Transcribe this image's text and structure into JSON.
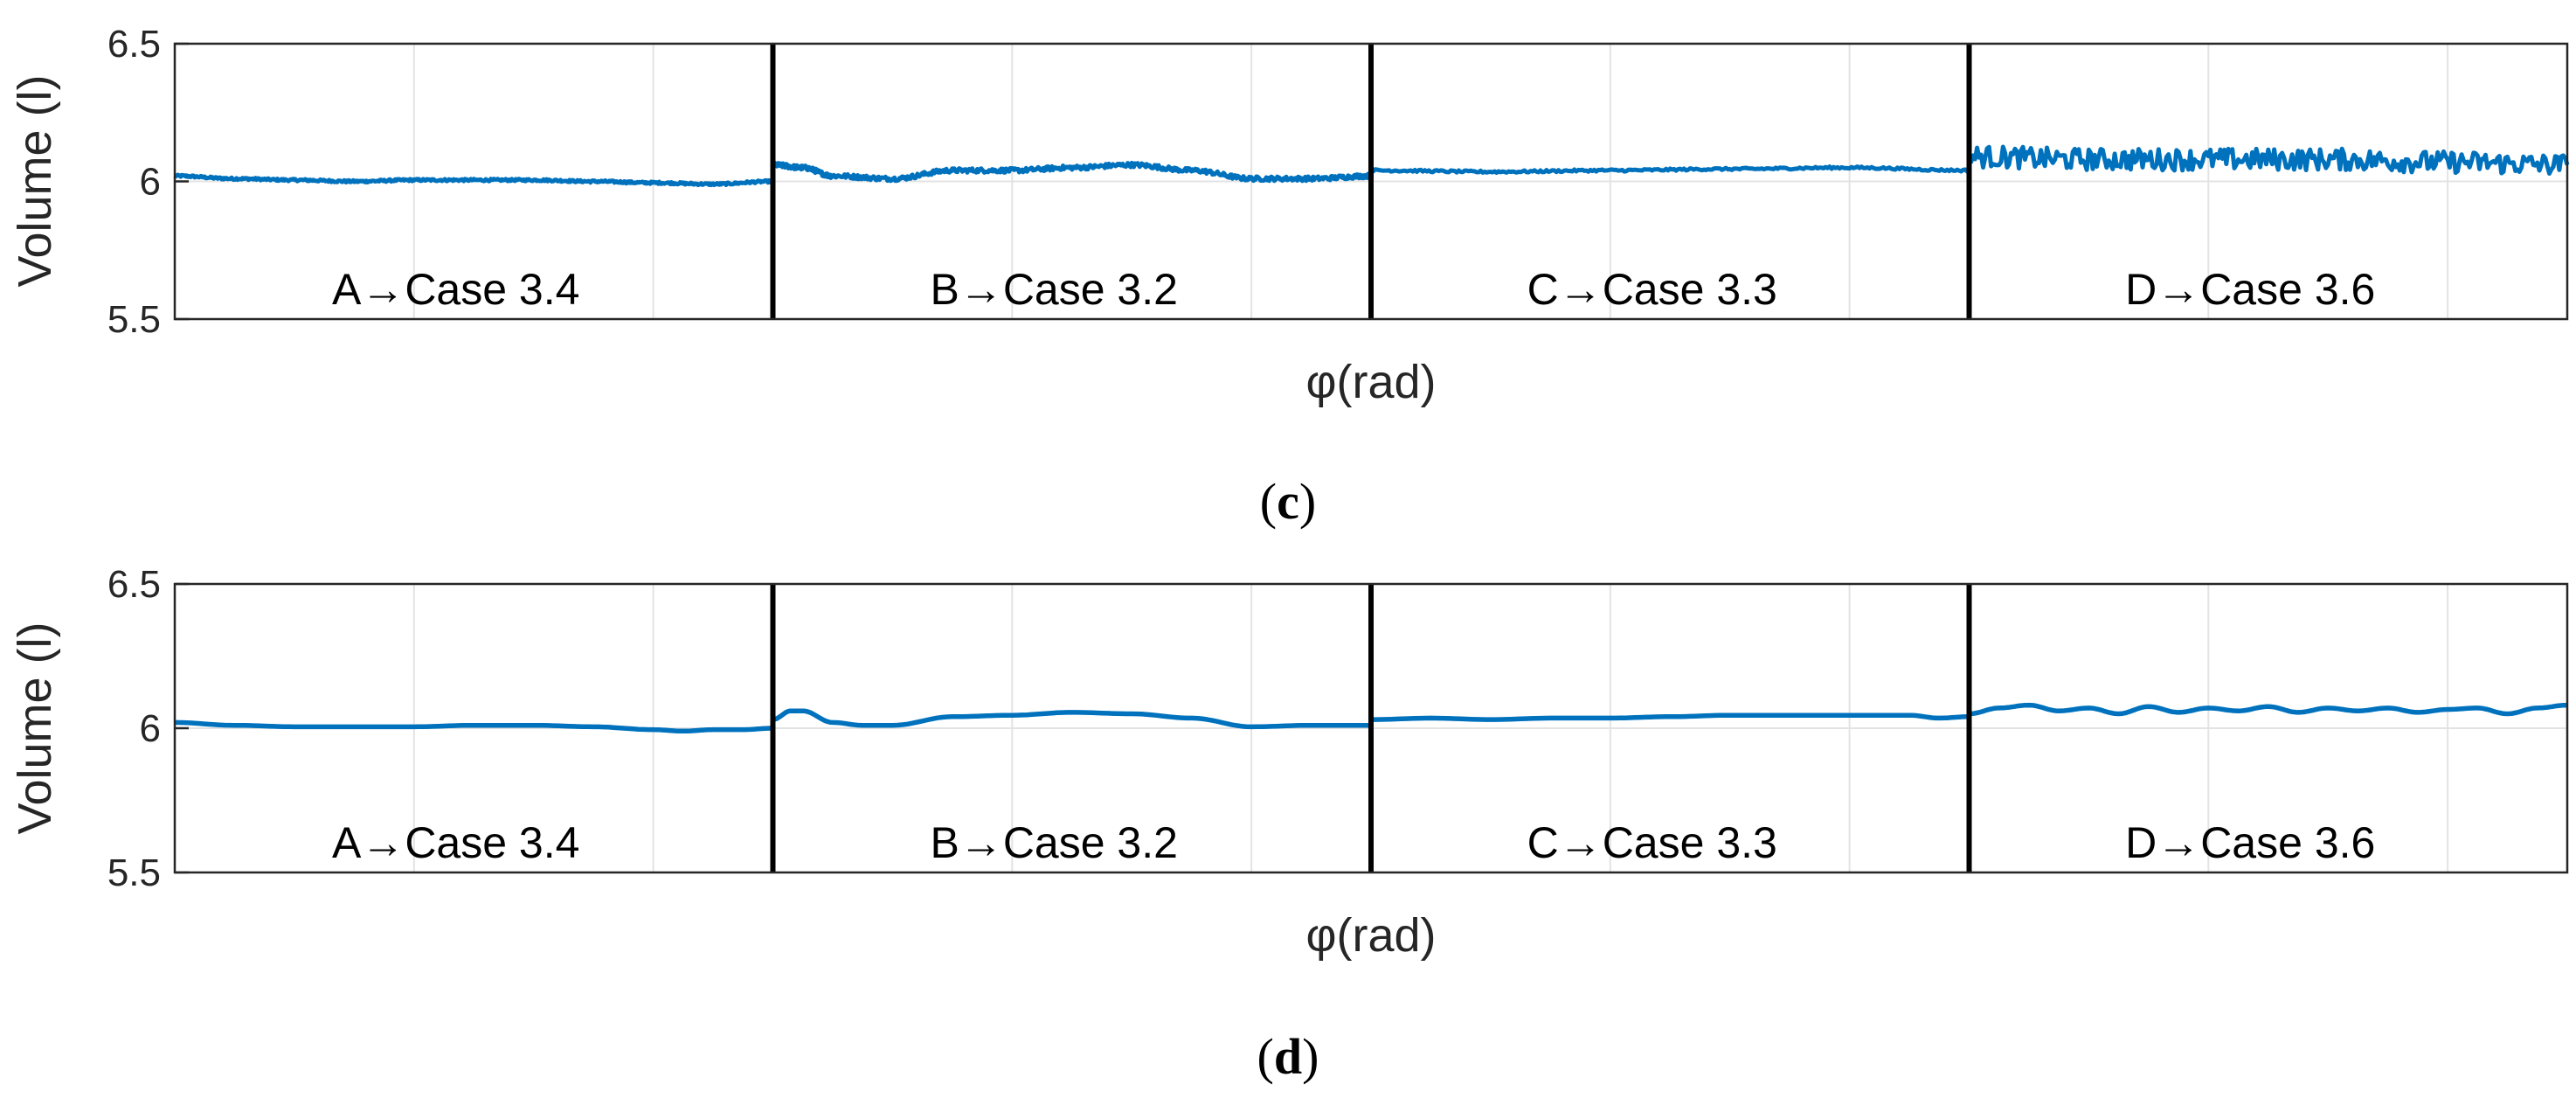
{
  "chart_data": [
    {
      "type": "line",
      "panel_label_open": "(",
      "panel_label_letter": "c",
      "panel_label_close": ")",
      "xlabel": "φ(rad)",
      "ylabel": "Volume (l)",
      "ylim": [
        5.5,
        6.5
      ],
      "xlim": [
        0,
        4
      ],
      "y_ticks": [
        "5.5",
        "6",
        "6.5"
      ],
      "grid": true,
      "line_color": "#0072BD",
      "segments": [
        {
          "label": "A→Case 3.4",
          "noise": 0.004,
          "x": [
            0,
            0.1,
            0.2,
            0.3,
            0.4,
            0.5,
            0.6,
            0.7,
            0.8,
            0.9,
            1.0
          ],
          "y": [
            6.02,
            6.01,
            6.005,
            6.0,
            6.005,
            6.005,
            6.005,
            6.0,
            5.995,
            5.99,
            6.0
          ]
        },
        {
          "label": "B→Case 3.2",
          "noise": 0.008,
          "x": [
            1.0,
            1.05,
            1.1,
            1.2,
            1.3,
            1.4,
            1.5,
            1.6,
            1.7,
            1.8,
            1.9,
            2.0
          ],
          "y": [
            6.06,
            6.05,
            6.02,
            6.01,
            6.04,
            6.04,
            6.05,
            6.06,
            6.04,
            6.01,
            6.01,
            6.02
          ]
        },
        {
          "label": "C→Case 3.3",
          "noise": 0.004,
          "x": [
            2.0,
            2.2,
            2.4,
            2.6,
            2.8,
            3.0
          ],
          "y": [
            6.04,
            6.035,
            6.04,
            6.045,
            6.05,
            6.04
          ]
        },
        {
          "label": "D→Case 3.6",
          "noise": 0.04,
          "x": [
            3.0,
            3.2,
            3.4,
            3.6,
            3.8,
            4.0
          ],
          "y": [
            6.09,
            6.08,
            6.08,
            6.08,
            6.07,
            6.06
          ]
        }
      ]
    },
    {
      "type": "line",
      "panel_label_open": "(",
      "panel_label_letter": "d",
      "panel_label_close": ")",
      "xlabel": "φ(rad)",
      "ylabel": "Volume (l)",
      "ylim": [
        5.5,
        6.5
      ],
      "xlim": [
        0,
        4
      ],
      "y_ticks": [
        "5.5",
        "6",
        "6.5"
      ],
      "grid": true,
      "line_color": "#0072BD",
      "segments": [
        {
          "label": "A→Case 3.4",
          "noise": 0,
          "x": [
            0,
            0.1,
            0.2,
            0.3,
            0.4,
            0.5,
            0.6,
            0.7,
            0.8,
            0.85,
            0.9,
            0.95,
            1.0
          ],
          "y": [
            6.02,
            6.01,
            6.005,
            6.005,
            6.005,
            6.01,
            6.01,
            6.005,
            5.995,
            5.99,
            5.995,
            5.995,
            6.0
          ]
        },
        {
          "label": "B→Case 3.2",
          "noise": 0,
          "x": [
            1.0,
            1.03,
            1.05,
            1.1,
            1.15,
            1.2,
            1.3,
            1.4,
            1.5,
            1.6,
            1.7,
            1.8,
            1.9,
            2.0
          ],
          "y": [
            6.03,
            6.06,
            6.06,
            6.02,
            6.01,
            6.01,
            6.04,
            6.045,
            6.055,
            6.05,
            6.035,
            6.005,
            6.01,
            6.01
          ]
        },
        {
          "label": "C→Case 3.3",
          "noise": 0,
          "x": [
            2.0,
            2.1,
            2.2,
            2.3,
            2.4,
            2.5,
            2.6,
            2.7,
            2.8,
            2.9,
            2.95,
            3.0
          ],
          "y": [
            6.03,
            6.035,
            6.03,
            6.035,
            6.035,
            6.04,
            6.045,
            6.045,
            6.045,
            6.045,
            6.035,
            6.04
          ]
        },
        {
          "label": "D→Case 3.6",
          "noise": 0,
          "x": [
            3.0,
            3.05,
            3.1,
            3.15,
            3.2,
            3.25,
            3.3,
            3.35,
            3.4,
            3.45,
            3.5,
            3.55,
            3.6,
            3.65,
            3.7,
            3.75,
            3.8,
            3.85,
            3.9,
            3.95,
            4.0
          ],
          "y": [
            6.05,
            6.07,
            6.08,
            6.06,
            6.07,
            6.05,
            6.075,
            6.055,
            6.07,
            6.06,
            6.075,
            6.055,
            6.07,
            6.06,
            6.07,
            6.055,
            6.065,
            6.07,
            6.05,
            6.07,
            6.08
          ]
        }
      ]
    }
  ]
}
